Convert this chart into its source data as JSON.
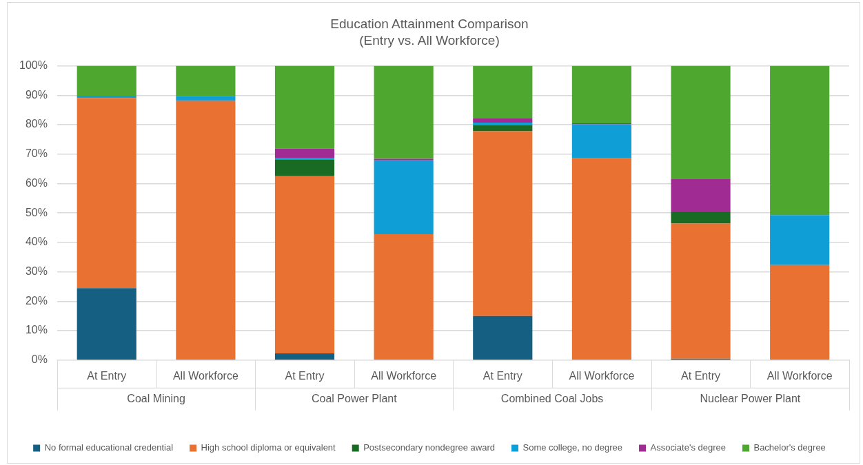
{
  "chart_data": {
    "type": "bar",
    "title": "Education Attainment Comparison",
    "subtitle": "(Entry vs. All Workforce)",
    "categories": [
      "At Entry",
      "All Workforce",
      "At Entry",
      "All Workforce",
      "At Entry",
      "All Workforce",
      "At Entry",
      "All Workforce"
    ],
    "annotations": [
      "Coal Mining",
      "Coal Power Plant",
      "Combined Coal Jobs",
      "Nuclear Power Plant"
    ],
    "stacked": true,
    "series": [
      {
        "name": "No formal educational credential",
        "color": "#156082",
        "values": [
          24.5,
          0,
          2.3,
          0,
          15.0,
          0,
          0.5,
          0
        ]
      },
      {
        "name": "High school diploma or equivalent",
        "color": "#e97132",
        "values": [
          64.6,
          88.1,
          60.2,
          42.8,
          62.8,
          68.6,
          45.9,
          32.3
        ]
      },
      {
        "name": "Postsecondary nondegree award",
        "color": "#196b24",
        "values": [
          0,
          0,
          5.6,
          0,
          2.1,
          0,
          3.9,
          0
        ]
      },
      {
        "name": "Some college, no degree",
        "color": "#0f9ed5",
        "values": [
          0.5,
          1.7,
          0.5,
          25.1,
          0.8,
          11.5,
          0,
          17.0
        ]
      },
      {
        "name": "Associate's degree",
        "color": "#a02b93",
        "values": [
          0.2,
          0,
          3.3,
          0.5,
          1.4,
          0.4,
          11.2,
          0
        ]
      },
      {
        "name": "Bachelor's degree",
        "color": "#4ea72e",
        "values": [
          10.2,
          10.2,
          28.1,
          31.6,
          17.9,
          19.5,
          38.5,
          50.7
        ]
      }
    ],
    "ylim": [
      0,
      100
    ],
    "yticks": [
      {
        "value": 0,
        "label": "0%"
      },
      {
        "value": 10,
        "label": "10%"
      },
      {
        "value": 20,
        "label": "20%"
      },
      {
        "value": 30,
        "label": "30%"
      },
      {
        "value": 40,
        "label": "40%"
      },
      {
        "value": 50,
        "label": "50%"
      },
      {
        "value": 60,
        "label": "60%"
      },
      {
        "value": 70,
        "label": "70%"
      },
      {
        "value": 80,
        "label": "80%"
      },
      {
        "value": 90,
        "label": "90%"
      },
      {
        "value": 100,
        "label": "100%"
      }
    ],
    "grid": "y",
    "legend": "bottom"
  }
}
